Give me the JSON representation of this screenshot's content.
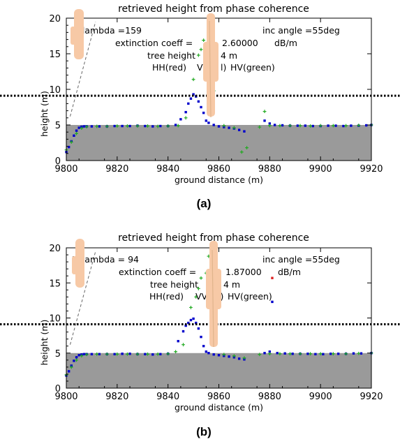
{
  "chart_data": [
    {
      "type": "scatter",
      "panel_label": "(a)",
      "title": "retrieved height from phase coherence",
      "xlabel": "ground distance (m)",
      "ylabel": "height (m)",
      "xlim": [
        9800,
        9920
      ],
      "ylim": [
        0,
        20
      ],
      "xticks": [
        "9800",
        "9820",
        "9840",
        "9860",
        "9880",
        "9900",
        "9920"
      ],
      "yticks": [
        "0",
        "5",
        "10",
        "15",
        "20"
      ],
      "annotations": {
        "lambda": "B_lambda =159",
        "inc_angle": "inc angle =55deg",
        "extinction_prefix": "extinction coeff =",
        "extinction_value": "2.60000",
        "extinction_unit": "dB/m",
        "tree_height_prefix": "tree height",
        "tree_height_suffix": "4 m",
        "legend_hh": "HH(red)",
        "legend_vv": "VV(",
        "legend_vv_tail": "l)",
        "legend_hv": "HV(green)"
      },
      "ground_level": 5,
      "reference_height": 9.1,
      "series": [
        {
          "color": "#0000cc",
          "marker": "square",
          "x": [
            9800,
            9801,
            9802,
            9803,
            9804,
            9805,
            9806,
            9807,
            9808,
            9810,
            9813,
            9816,
            9819,
            9822,
            9825,
            9828,
            9831,
            9834,
            9837,
            9840,
            9843,
            9845,
            9847,
            9848,
            9849,
            9850,
            9851,
            9852,
            9853,
            9854,
            9855,
            9856,
            9858,
            9860,
            9862,
            9864,
            9866,
            9868,
            9870,
            9878,
            9880,
            9882,
            9885,
            9888,
            9891,
            9894,
            9897,
            9900,
            9903,
            9906,
            9909,
            9912,
            9915,
            9918,
            9920
          ],
          "y": [
            1.2,
            1.9,
            2.7,
            3.5,
            4.2,
            4.6,
            4.75,
            4.8,
            4.8,
            4.8,
            4.8,
            4.8,
            4.85,
            4.85,
            4.85,
            4.9,
            4.85,
            4.8,
            4.85,
            4.85,
            5.0,
            5.8,
            6.8,
            8.0,
            8.7,
            9.3,
            9.0,
            8.3,
            7.5,
            6.7,
            5.6,
            5.3,
            5.0,
            4.8,
            4.7,
            4.6,
            4.5,
            4.3,
            4.1,
            5.6,
            5.2,
            5.0,
            4.95,
            4.9,
            4.9,
            4.9,
            4.85,
            4.85,
            4.9,
            4.9,
            4.85,
            4.9,
            4.9,
            4.95,
            5.0
          ]
        },
        {
          "color": "#22aa22",
          "marker": "plus",
          "x": [
            9800,
            9802,
            9804,
            9806,
            9808,
            9812,
            9816,
            9820,
            9824,
            9828,
            9832,
            9836,
            9840,
            9844,
            9847,
            9850,
            9852,
            9853,
            9854,
            9856,
            9857,
            9858,
            9862,
            9866,
            9869,
            9871,
            9876,
            9878,
            9880,
            9884,
            9888,
            9892,
            9896,
            9900,
            9905,
            9910,
            9915,
            9920
          ],
          "y": [
            1.5,
            2.6,
            3.8,
            4.55,
            4.75,
            4.8,
            4.8,
            4.85,
            4.85,
            4.85,
            4.85,
            4.8,
            4.85,
            4.9,
            6.0,
            11.4,
            14.8,
            15.6,
            16.9,
            17.9,
            13.8,
            9.8,
            4.9,
            4.6,
            1.2,
            1.8,
            4.7,
            6.9,
            4.9,
            4.9,
            4.9,
            4.9,
            4.85,
            4.9,
            4.9,
            4.9,
            4.95,
            5.0
          ]
        }
      ]
    },
    {
      "type": "scatter",
      "panel_label": "(b)",
      "title": "retrieved height from phase coherence",
      "xlabel": "ground distance (m)",
      "ylabel": "height (m)",
      "xlim": [
        9800,
        9920
      ],
      "ylim": [
        0,
        20
      ],
      "xticks": [
        "9800",
        "9820",
        "9840",
        "9860",
        "9880",
        "9900",
        "9920"
      ],
      "yticks": [
        "0",
        "5",
        "10",
        "15",
        "20"
      ],
      "annotations": {
        "lambda": "B_lambda = 94",
        "inc_angle": "inc angle =55deg",
        "extinction_prefix": "extinction coeff =",
        "extinction_value": "1.87000",
        "extinction_unit": "dB/m",
        "tree_height_prefix": "tree height",
        "tree_height_suffix": "4 m",
        "legend_hh": "HH(red)",
        "legend_vv": "VV(",
        "legend_vv_tail": "l)",
        "legend_hv": "HV(green)"
      },
      "ground_level": 5,
      "reference_height": 9.1,
      "series": [
        {
          "color": "#0000cc",
          "marker": "square",
          "x": [
            9800,
            9801,
            9802,
            9803,
            9804,
            9805,
            9806,
            9807,
            9808,
            9810,
            9813,
            9816,
            9819,
            9822,
            9825,
            9828,
            9831,
            9834,
            9837,
            9840,
            9844,
            9846,
            9847,
            9848,
            9849,
            9850,
            9851,
            9852,
            9853,
            9854,
            9855,
            9856,
            9858,
            9860,
            9862,
            9864,
            9866,
            9868,
            9870,
            9878,
            9880,
            9881,
            9883,
            9886,
            9889,
            9892,
            9895,
            9898,
            9901,
            9904,
            9907,
            9910,
            9913,
            9916,
            9920
          ],
          "y": [
            1.8,
            2.4,
            3.2,
            3.9,
            4.4,
            4.7,
            4.8,
            4.85,
            4.85,
            4.85,
            4.85,
            4.85,
            4.85,
            4.9,
            4.9,
            4.85,
            4.85,
            4.8,
            4.85,
            4.9,
            6.7,
            8.1,
            8.9,
            9.3,
            9.7,
            9.9,
            9.3,
            8.5,
            7.3,
            6.0,
            5.2,
            5.0,
            4.8,
            4.7,
            4.6,
            4.5,
            4.4,
            4.2,
            4.1,
            5.0,
            5.2,
            12.3,
            5.0,
            4.95,
            4.9,
            4.9,
            4.9,
            4.85,
            4.85,
            4.9,
            4.9,
            4.9,
            4.95,
            4.95,
            5.0
          ]
        },
        {
          "color": "#22aa22",
          "marker": "plus",
          "x": [
            9800,
            9802,
            9804,
            9806,
            9808,
            9812,
            9816,
            9820,
            9824,
            9828,
            9832,
            9836,
            9840,
            9843,
            9846,
            9849,
            9851,
            9852,
            9853,
            9855,
            9856,
            9857,
            9862,
            9866,
            9870,
            9876,
            9880,
            9884,
            9888,
            9892,
            9896,
            9900,
            9905,
            9910,
            9915,
            9920
          ],
          "y": [
            1.9,
            3.0,
            4.0,
            4.6,
            4.8,
            4.85,
            4.85,
            4.85,
            4.85,
            4.85,
            4.85,
            4.85,
            4.9,
            5.2,
            6.2,
            11.5,
            13.0,
            14.2,
            15.7,
            16.4,
            18.8,
            14.3,
            4.8,
            4.6,
            4.3,
            4.8,
            4.9,
            4.9,
            4.9,
            4.9,
            4.9,
            4.9,
            4.9,
            4.9,
            4.95,
            5.0
          ]
        },
        {
          "color": "#dd2222",
          "marker": "square",
          "x": [
            9881
          ],
          "y": [
            15.7
          ]
        }
      ]
    }
  ]
}
